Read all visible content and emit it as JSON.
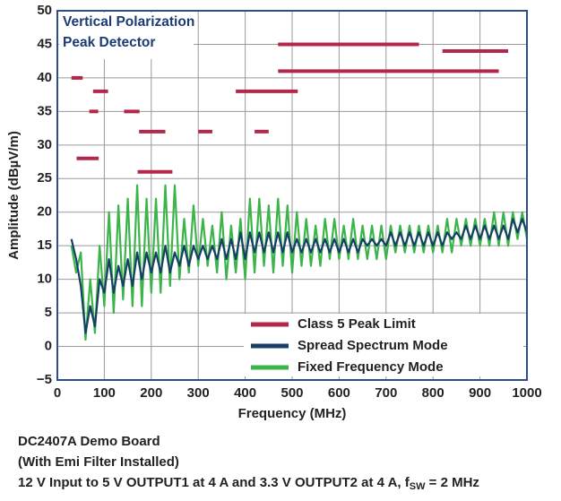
{
  "chart_data": {
    "type": "line",
    "annotations": [
      "Vertical Polarization",
      "Peak Detector"
    ],
    "x_label": "Frequency (MHz)",
    "y_label": "Amplitude (dBµV/m)",
    "xlim": [
      0,
      1000
    ],
    "xticks": [
      0,
      100,
      200,
      300,
      400,
      500,
      600,
      700,
      800,
      900,
      1000
    ],
    "ylim": [
      -5,
      50
    ],
    "yticks": [
      {
        "value": -5,
        "label": "−5"
      },
      0,
      5,
      10,
      15,
      20,
      25,
      30,
      35,
      40,
      45,
      50
    ],
    "grid": true,
    "legend": "lower-right",
    "x": [
      30,
      40,
      50,
      60,
      70,
      80,
      90,
      100,
      110,
      120,
      130,
      140,
      150,
      160,
      170,
      180,
      190,
      200,
      210,
      220,
      230,
      240,
      250,
      260,
      270,
      280,
      290,
      300,
      310,
      320,
      330,
      340,
      350,
      360,
      370,
      380,
      390,
      400,
      410,
      420,
      430,
      440,
      450,
      460,
      470,
      480,
      490,
      500,
      510,
      520,
      530,
      540,
      550,
      560,
      570,
      580,
      590,
      600,
      610,
      620,
      630,
      640,
      650,
      660,
      670,
      680,
      690,
      700,
      710,
      720,
      730,
      740,
      750,
      760,
      770,
      780,
      790,
      800,
      810,
      820,
      830,
      840,
      850,
      860,
      870,
      880,
      890,
      900,
      910,
      920,
      930,
      940,
      950,
      960,
      970,
      980,
      990,
      1000
    ],
    "series": [
      {
        "name": "Class 5 Peak Limit",
        "color": "#b3284a",
        "segments": [
          {
            "x": [
              30,
              54
            ],
            "value": 40
          },
          {
            "x": [
              41,
              88
            ],
            "value": 28
          },
          {
            "x": [
              76,
              108
            ],
            "value": 38
          },
          {
            "x": [
              68,
              87
            ],
            "value": 35
          },
          {
            "x": [
              142,
              175
            ],
            "value": 35
          },
          {
            "x": [
              174,
              230
            ],
            "value": 32
          },
          {
            "x": [
              171,
              245
            ],
            "value": 26
          },
          {
            "x": [
              300,
              330
            ],
            "value": 32
          },
          {
            "x": [
              380,
              512
            ],
            "value": 38
          },
          {
            "x": [
              420,
              450
            ],
            "value": 32
          },
          {
            "x": [
              470,
              770
            ],
            "value": 45
          },
          {
            "x": [
              470,
              940
            ],
            "value": 41
          },
          {
            "x": [
              820,
              960
            ],
            "value": 44
          }
        ]
      },
      {
        "name": "Spread Spectrum Mode",
        "color": "#173f66",
        "values": [
          16,
          13,
          9,
          2,
          6,
          3,
          10,
          8,
          13,
          8,
          12,
          9,
          13,
          9,
          14,
          10,
          14,
          11,
          14,
          11,
          15,
          11,
          14,
          12,
          15,
          12,
          15,
          13,
          15,
          13,
          15,
          13,
          16,
          13,
          16,
          13,
          17,
          13,
          17,
          14,
          17,
          14,
          17,
          14,
          17,
          14,
          17,
          14,
          16,
          14,
          16,
          14,
          16,
          14,
          16,
          14,
          16,
          14,
          16,
          14,
          16,
          14,
          16,
          15,
          16,
          15,
          16,
          15,
          17,
          15,
          17,
          15,
          17,
          15,
          17,
          15,
          17,
          15,
          17,
          15,
          17,
          16,
          17,
          16,
          18,
          16,
          18,
          16,
          18,
          16,
          18,
          16,
          18,
          16,
          19,
          17,
          19,
          17
        ]
      },
      {
        "name": "Fixed Frequency Mode",
        "color": "#3bb54a",
        "values": [
          15,
          11,
          14,
          1,
          10,
          2,
          15,
          6,
          20,
          5,
          21,
          7,
          22,
          6,
          24,
          6,
          22,
          8,
          22,
          8,
          24,
          9,
          24,
          10,
          19,
          11,
          21,
          12,
          19,
          12,
          18,
          11,
          20,
          10,
          18,
          11,
          19,
          10,
          22,
          11,
          22,
          12,
          21,
          11,
          22,
          12,
          21,
          11,
          20,
          12,
          19,
          12,
          18,
          12,
          19,
          13,
          19,
          13,
          18,
          13,
          19,
          13,
          18,
          13,
          18,
          13,
          18,
          13,
          18,
          14,
          18,
          14,
          18,
          14,
          18,
          14,
          18,
          14,
          18,
          14,
          19,
          14,
          19,
          15,
          19,
          15,
          19,
          15,
          19,
          15,
          20,
          15,
          20,
          15,
          20,
          16,
          20,
          16
        ]
      }
    ],
    "notes": [
      "DC2407A Demo Board",
      "(With Emi Filter Installed)",
      [
        "12 V Input to 5 V OUTPUT1 at 4 A and 3.3 V OUTPUT2 at 4 A, f",
        "SW",
        " = 2 MHz"
      ]
    ]
  }
}
